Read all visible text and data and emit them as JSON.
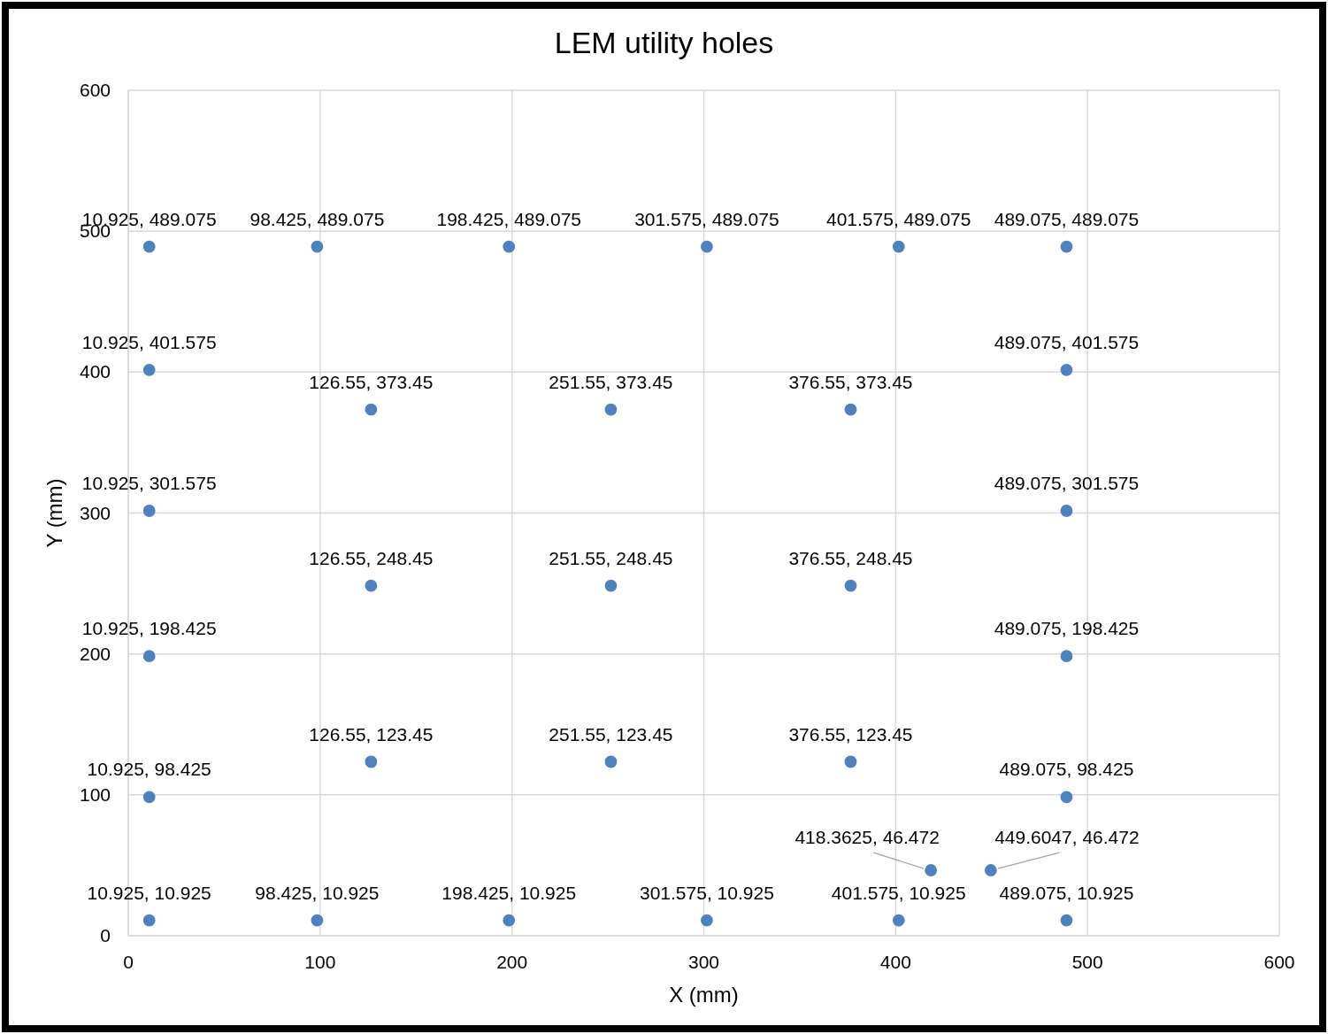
{
  "chart_data": {
    "type": "scatter",
    "title": "LEM utility holes",
    "xlabel": "X (mm)",
    "ylabel": "Y (mm)",
    "x": [
      10.925,
      98.425,
      198.425,
      301.575,
      401.575,
      489.075,
      10.925,
      489.075,
      10.925,
      489.075,
      10.925,
      489.075,
      10.925,
      489.075,
      10.925,
      98.425,
      198.425,
      301.575,
      401.575,
      489.075,
      126.55,
      251.55,
      376.55,
      126.55,
      251.55,
      376.55,
      126.55,
      251.55,
      376.55,
      418.3625,
      449.6047
    ],
    "values": [
      489.075,
      489.075,
      489.075,
      489.075,
      489.075,
      489.075,
      401.575,
      401.575,
      301.575,
      301.575,
      198.425,
      198.425,
      98.425,
      98.425,
      10.925,
      10.925,
      10.925,
      10.925,
      10.925,
      10.925,
      373.45,
      373.45,
      373.45,
      248.45,
      248.45,
      248.45,
      123.45,
      123.45,
      123.45,
      46.472,
      46.472
    ],
    "value_labels": [
      "10.925, 489.075",
      "98.425, 489.075",
      "198.425, 489.075",
      "301.575, 489.075",
      "401.575, 489.075",
      "489.075, 489.075",
      "10.925, 401.575",
      "489.075, 401.575",
      "10.925, 301.575",
      "489.075, 301.575",
      "10.925, 198.425",
      "489.075, 198.425",
      "10.925, 98.425",
      "489.075, 98.425",
      "10.925, 10.925",
      "98.425, 10.925",
      "198.425, 10.925",
      "301.575, 10.925",
      "401.575, 10.925",
      "489.075, 10.925",
      "126.55, 373.45",
      "251.55, 373.45",
      "376.55, 373.45",
      "126.55, 248.45",
      "251.55, 248.45",
      "376.55, 248.45",
      "126.55, 123.45",
      "251.55, 123.45",
      "376.55, 123.45",
      "418.3625, 46.472",
      "449.6047, 46.472"
    ],
    "color": "#4f81bd",
    "marker": "circle",
    "grid": true,
    "xlim": [
      0,
      600
    ],
    "xticks": [
      0,
      100,
      200,
      300,
      400,
      500,
      600
    ],
    "ylim": [
      0,
      600
    ],
    "yticks": [
      0,
      100,
      200,
      300,
      400,
      500,
      600
    ]
  }
}
